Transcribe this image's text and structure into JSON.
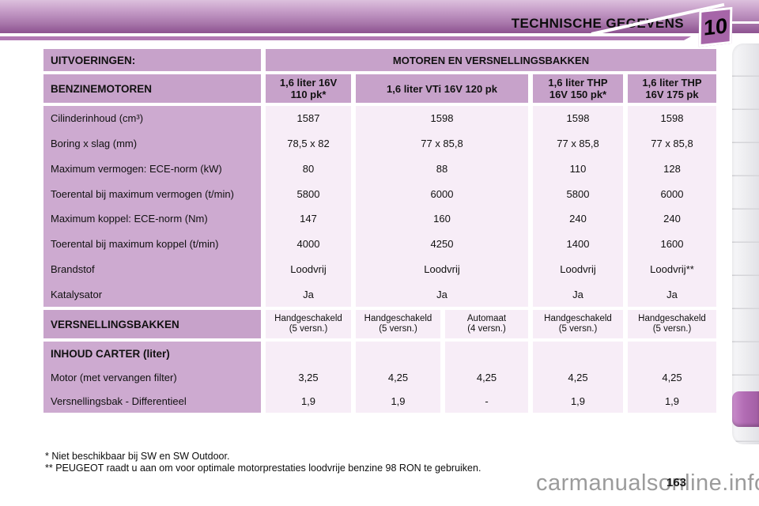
{
  "page": {
    "title": "TECHNISCHE GEGEVENS",
    "chapter_number": "10",
    "page_number": "163",
    "watermark": "carmanualsonline.info"
  },
  "colors": {
    "header_purple": "#c7a2ca",
    "label_purple": "#cdaad0",
    "cell_pink": "#f7edf7",
    "banner_top": "#dcc0dd",
    "banner_bottom": "#8d5290",
    "accent_line": "#b177b3",
    "badge_purple": "#a665a8",
    "tab_purple": "#b26cb4"
  },
  "table": {
    "corner_header": "UITVOERINGEN:",
    "group_header": "MOTOREN EN VERSNELLINGSBAKKEN",
    "row_group_header": "BENZINEMOTOREN",
    "engine_headers": [
      "1,6 liter 16V\n110 pk*",
      "1,6 liter VTi 16V 120 pk",
      "1,6 liter THP\n16V 150 pk*",
      "1,6 liter THP\n16V 175 pk"
    ],
    "specs": [
      {
        "label": "Cilinderinhoud (cm³)",
        "values": [
          "1587",
          "1598",
          "1598",
          "1598"
        ]
      },
      {
        "label": "Boring x slag (mm)",
        "values": [
          "78,5 x 82",
          "77 x 85,8",
          "77 x 85,8",
          "77 x 85,8"
        ]
      },
      {
        "label": "Maximum vermogen: ECE-norm (kW)",
        "values": [
          "80",
          "88",
          "110",
          "128"
        ]
      },
      {
        "label": "Toerental bij maximum vermogen (t/min)",
        "values": [
          "5800",
          "6000",
          "5800",
          "6000"
        ]
      },
      {
        "label": "Maximum koppel: ECE-norm (Nm)",
        "values": [
          "147",
          "160",
          "240",
          "240"
        ]
      },
      {
        "label": "Toerental bij maximum koppel (t/min)",
        "values": [
          "4000",
          "4250",
          "1400",
          "1600"
        ]
      },
      {
        "label": "Brandstof",
        "values": [
          "Loodvrij",
          "Loodvrij",
          "Loodvrij",
          "Loodvrij**"
        ]
      },
      {
        "label": "Katalysator",
        "values": [
          "Ja",
          "Ja",
          "Ja",
          "Ja"
        ]
      }
    ],
    "gearbox": {
      "header": "VERSNELLINGSBAKKEN",
      "cells": [
        "Handgeschakeld\n(5 versn.)",
        "Handgeschakeld\n(5 versn.)",
        "Automaat\n(4 versn.)",
        "Handgeschakeld\n(5 versn.)",
        "Handgeschakeld\n(5 versn.)"
      ]
    },
    "carter": {
      "header": "INHOUD CARTER (liter)",
      "rows": [
        {
          "label": "Motor (met vervangen filter)",
          "values": [
            "3,25",
            "4,25",
            "4,25",
            "4,25",
            "4,25"
          ]
        },
        {
          "label": "Versnellingsbak - Differentieel",
          "values": [
            "1,9",
            "1,9",
            "-",
            "1,9",
            "1,9"
          ]
        }
      ]
    }
  },
  "footnotes": [
    "* Niet beschikbaar bij SW en SW Outdoor.",
    "** PEUGEOT raadt u aan om voor optimale motorprestaties loodvrije benzine 98 RON te gebruiken."
  ]
}
